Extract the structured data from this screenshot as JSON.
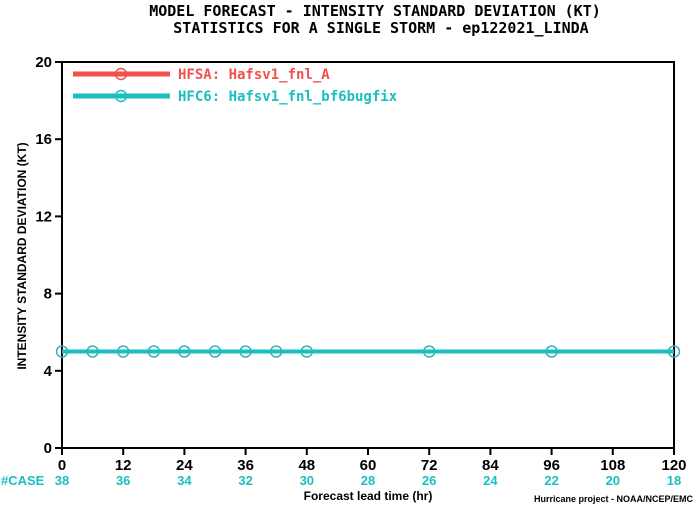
{
  "chart_data": {
    "type": "line",
    "title": "MODEL FORECAST - INTENSITY STANDARD DEVIATION (KT)",
    "subtitle": "STATISTICS FOR A SINGLE STORM - ep122021_LINDA",
    "xlabel": "Forecast lead time (hr)",
    "ylabel": "INTENSITY STANDARD DEVIATION (KT)",
    "xlim": [
      0,
      120
    ],
    "ylim": [
      0,
      20
    ],
    "xticks": [
      0,
      12,
      24,
      36,
      48,
      60,
      72,
      84,
      96,
      108,
      120
    ],
    "yticks": [
      0,
      4,
      8,
      12,
      16,
      20
    ],
    "legend_position": "top-left",
    "series": [
      {
        "name": "HFSA: Hafsv1_fnl_A",
        "color": "#f2504b",
        "x": [
          0,
          6,
          12,
          18,
          24,
          30,
          36,
          42,
          48,
          72,
          96,
          120
        ],
        "y": [
          5,
          5,
          5,
          5,
          5,
          5,
          5,
          5,
          5,
          5,
          5,
          5
        ]
      },
      {
        "name": "HFC6: Hafsv1_fnl_bf6bugfix",
        "color": "#19bfbf",
        "x": [
          0,
          6,
          12,
          18,
          24,
          30,
          36,
          42,
          48,
          72,
          96,
          120
        ],
        "y": [
          5,
          5,
          5,
          5,
          5,
          5,
          5,
          5,
          5,
          5,
          5,
          5
        ]
      }
    ],
    "case_label": "#CASE",
    "case_counts": [
      38,
      36,
      34,
      32,
      30,
      28,
      26,
      24,
      22,
      20,
      18
    ],
    "credit": "Hurricane project - NOAA/NCEP/EMC"
  }
}
